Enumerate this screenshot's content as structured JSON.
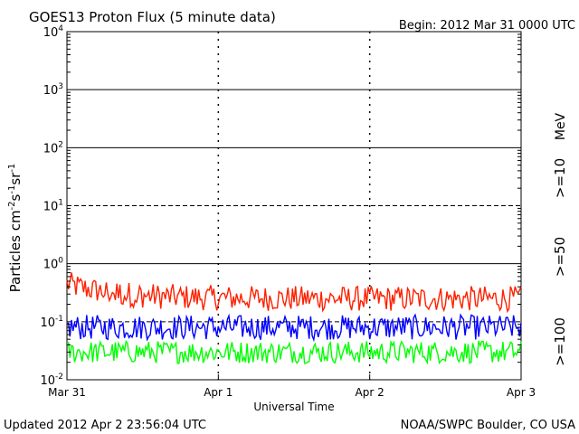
{
  "chart_data": {
    "type": "line",
    "title": "GOES13 Proton Flux (5 minute data)",
    "begin_label": "Begin: 2012 Mar 31 0000 UTC",
    "xlabel": "Universal Time",
    "ylabel_main": "Particles cm",
    "ylabel_exp1": "-2",
    "ylabel_s": "s",
    "ylabel_exp2": "-1",
    "ylabel_sr": "sr",
    "ylabel_exp3": "-1",
    "x_tick_labels": [
      "Mar 31",
      "Apr 1",
      "Apr 2",
      "Apr 3"
    ],
    "x_range_hours": [
      0,
      72
    ],
    "y_scale": "log",
    "ylim": [
      0.01,
      10000
    ],
    "y_ticks": [
      {
        "base": "10",
        "exp": "4",
        "value": 10000
      },
      {
        "base": "10",
        "exp": "3",
        "value": 1000
      },
      {
        "base": "10",
        "exp": "2",
        "value": 100
      },
      {
        "base": "10",
        "exp": "1",
        "value": 10
      },
      {
        "base": "10",
        "exp": "0",
        "value": 1
      },
      {
        "base": "10",
        "exp": "-1",
        "value": 0.1
      },
      {
        "base": "10",
        "exp": "-2",
        "value": 0.01
      }
    ],
    "thresholds": [
      {
        "value": 1000,
        "style": "solid"
      },
      {
        "value": 100,
        "style": "solid"
      },
      {
        "value": 10,
        "style": "dashed"
      },
      {
        "value": 1,
        "style": "solid"
      },
      {
        "value": 0.1,
        "style": "dashed"
      }
    ],
    "grid": "day boundaries dashed",
    "unit_label": "MeV",
    "series": [
      {
        "name": ">=10",
        "color": "#ff2000",
        "typical_value": 0.25,
        "start_value": 0.45,
        "peak_value": 0.9,
        "noise_range": [
          0.13,
          0.5
        ]
      },
      {
        "name": ">=50",
        "color": "#0000ff",
        "typical_value": 0.08,
        "noise_range": [
          0.04,
          0.15
        ]
      },
      {
        "name": ">=100",
        "color": "#00ff00",
        "typical_value": 0.03,
        "noise_range": [
          0.018,
          0.06
        ]
      }
    ]
  },
  "footer": {
    "updated": "Updated 2012 Apr  2 23:56:04 UTC",
    "source": "NOAA/SWPC Boulder, CO USA"
  }
}
